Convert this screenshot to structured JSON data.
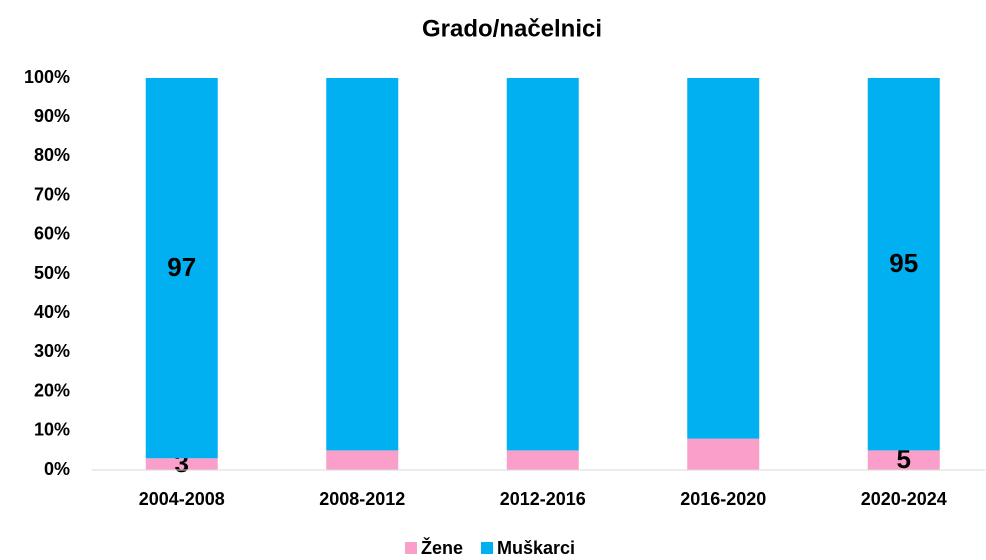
{
  "chart_data": {
    "type": "stacked_bar_100",
    "title": "Grado/načelnici",
    "categories": [
      "2004-2008",
      "2008-2012",
      "2012-2016",
      "2016-2020",
      "2020-2024"
    ],
    "series": [
      {
        "name": "Žene",
        "color": "#f99fc9",
        "values": [
          3,
          5,
          5,
          8,
          5
        ],
        "value_labels": [
          "3",
          null,
          null,
          null,
          "5"
        ]
      },
      {
        "name": "Muškarci",
        "color": "#00b0f0",
        "values": [
          97,
          95,
          95,
          92,
          95
        ],
        "value_labels": [
          "97",
          null,
          null,
          null,
          "95"
        ]
      }
    ],
    "ylim": [
      0,
      100
    ],
    "yticks": [
      {
        "value": 0,
        "label": "0%"
      },
      {
        "value": 10,
        "label": "10%"
      },
      {
        "value": 20,
        "label": "20%"
      },
      {
        "value": 30,
        "label": "30%"
      },
      {
        "value": 40,
        "label": "40%"
      },
      {
        "value": 50,
        "label": "50%"
      },
      {
        "value": 60,
        "label": "60%"
      },
      {
        "value": 70,
        "label": "70%"
      },
      {
        "value": 80,
        "label": "80%"
      },
      {
        "value": 90,
        "label": "90%"
      },
      {
        "value": 100,
        "label": "100%"
      }
    ],
    "grid": false,
    "legend": "bottom"
  }
}
